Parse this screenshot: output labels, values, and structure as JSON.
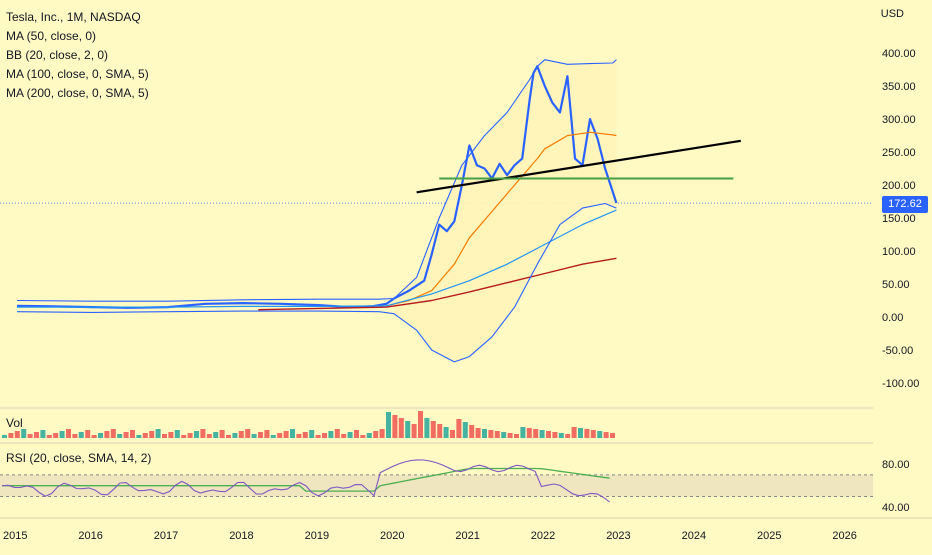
{
  "legend": {
    "symbol": "Tesla, Inc., 1M, NASDAQ",
    "ma50": "MA (50, close, 0)",
    "bb": "BB (20, close, 2, 0)",
    "ma100": "MA (100, close, 0, SMA, 5)",
    "ma200": "MA (200, close, 0, SMA, 5)"
  },
  "panes": {
    "vol_label": "Vol",
    "rsi_label": "RSI (20, close, SMA, 14, 2)"
  },
  "currency": "USD",
  "last_price_label": "172.62",
  "colors": {
    "background": "#FFF9C4",
    "price": "#2962FF",
    "ma50": "#F57C00",
    "ma100": "#2196F3",
    "ma200": "#B71C1C",
    "bb_fill": "#FFF3B8",
    "trend": "#000000",
    "support": "#43A047",
    "rsi": "#7E57C2",
    "rsi_ma": "#4CAF50",
    "vol_up": "#26A69A",
    "vol_down": "#EF5350"
  },
  "chart_data": {
    "type": "line",
    "title": "Tesla, Inc., 1M, NASDAQ",
    "ylabel": "USD",
    "ylim": [
      -100,
      400
    ],
    "y_ticks": [
      "400.00",
      "350.00",
      "300.00",
      "250.00",
      "200.00",
      "150.00",
      "100.00",
      "50.00",
      "0.00",
      "-50.00",
      "-100.00"
    ],
    "x_ticks": [
      "2015",
      "2016",
      "2017",
      "2018",
      "2019",
      "2020",
      "2021",
      "2022",
      "2023",
      "2024",
      "2025",
      "2026"
    ],
    "last_value": 172.62,
    "series": [
      {
        "name": "Tesla, Inc., 1M, NASDAQ",
        "x": [
          2015.0,
          2015.5,
          2016.0,
          2016.5,
          2017.0,
          2017.5,
          2018.0,
          2018.5,
          2019.0,
          2019.4,
          2019.7,
          2019.9,
          2020.0,
          2020.2,
          2020.4,
          2020.5,
          2020.6,
          2020.7,
          2020.8,
          2020.9,
          2021.0,
          2021.1,
          2021.2,
          2021.3,
          2021.4,
          2021.5,
          2021.6,
          2021.7,
          2021.8,
          2021.85,
          2021.9,
          2022.0,
          2022.1,
          2022.2,
          2022.3,
          2022.4,
          2022.5,
          2022.6,
          2022.7,
          2022.8,
          2022.9,
          2022.95
        ],
        "values": [
          17,
          16,
          15,
          14,
          15,
          20,
          21,
          20,
          18,
          15,
          16,
          20,
          28,
          40,
          55,
          95,
          140,
          130,
          145,
          200,
          260,
          230,
          225,
          210,
          232,
          215,
          230,
          240,
          330,
          370,
          380,
          350,
          325,
          310,
          365,
          240,
          230,
          300,
          270,
          225,
          190,
          172.62
        ]
      },
      {
        "name": "MA (50, close, 0)",
        "x": [
          2019.9,
          2020.2,
          2020.5,
          2020.8,
          2021.0,
          2021.3,
          2021.6,
          2021.9,
          2022.0,
          2022.3,
          2022.6,
          2022.9,
          2022.95
        ],
        "values": [
          17,
          25,
          40,
          80,
          120,
          160,
          200,
          240,
          255,
          275,
          280,
          276,
          275
        ]
      },
      {
        "name": "MA (100, close, 0, SMA, 5)",
        "x": [
          2015.0,
          2016.0,
          2017.0,
          2018.0,
          2019.0,
          2019.9,
          2020.5,
          2021.0,
          2021.5,
          2022.0,
          2022.5,
          2022.95
        ],
        "values": [
          15,
          15,
          15,
          16,
          16,
          17,
          35,
          55,
          80,
          110,
          140,
          162
        ]
      },
      {
        "name": "MA (200, close, 0, SMA, 5)",
        "x": [
          2018.2,
          2019.0,
          2019.9,
          2020.5,
          2021.0,
          2021.5,
          2022.0,
          2022.5,
          2022.95
        ],
        "values": [
          11,
          13,
          15,
          25,
          38,
          52,
          66,
          80,
          89
        ]
      },
      {
        "name": "BB (20, close, 2, 0) upper",
        "x": [
          2015.0,
          2016.0,
          2017.0,
          2018.0,
          2019.0,
          2019.8,
          2020.0,
          2020.3,
          2020.6,
          2020.9,
          2021.2,
          2021.5,
          2021.8,
          2021.9,
          2022.0,
          2022.3,
          2022.6,
          2022.9,
          2022.95
        ],
        "values": [
          25,
          24,
          24,
          26,
          27,
          27,
          28,
          60,
          150,
          230,
          275,
          310,
          360,
          380,
          390,
          383,
          384,
          385,
          390
        ]
      },
      {
        "name": "BB (20, close, 2, 0) lower",
        "x": [
          2015.0,
          2016.0,
          2017.0,
          2018.0,
          2019.0,
          2019.8,
          2020.0,
          2020.3,
          2020.5,
          2020.8,
          2021.0,
          2021.3,
          2021.6,
          2021.9,
          2022.2,
          2022.5,
          2022.8,
          2022.95
        ],
        "values": [
          8,
          7,
          8,
          9,
          9,
          8,
          5,
          -20,
          -50,
          -68,
          -60,
          -30,
          15,
          80,
          140,
          165,
          172,
          165
        ]
      }
    ],
    "annotations": [
      {
        "name": "trend line",
        "x": [
          2020.3,
          2024.6
        ],
        "values": [
          189,
          267
        ]
      },
      {
        "name": "support line",
        "x": [
          2020.6,
          2024.5
        ],
        "values": [
          210,
          210
        ]
      }
    ],
    "rsi": {
      "ylim": [
        30,
        95
      ],
      "y_ticks": [
        "80.00",
        "40.00"
      ],
      "upper_band": 70,
      "lower_band": 50
    }
  }
}
